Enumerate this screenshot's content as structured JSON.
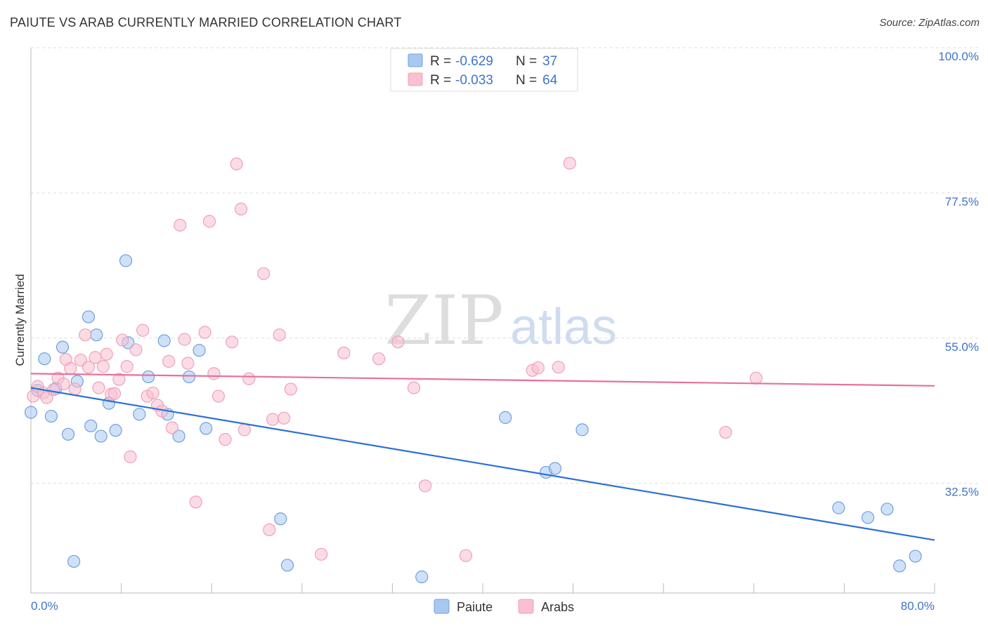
{
  "title": "PAIUTE VS ARAB CURRENTLY MARRIED CORRELATION CHART",
  "source": "Source: ZipAtlas.com",
  "watermark": {
    "zip": "ZIP",
    "atlas": "atlas"
  },
  "colors": {
    "paiute_fill": "#a8c8f0",
    "paiute_stroke": "#6fa0e0",
    "paiute_line": "#2b6fd6",
    "arab_fill": "#f8c0d0",
    "arab_stroke": "#f0a0b8",
    "arab_line": "#e8709a",
    "axis_text": "#3f74c8",
    "grid": "#dddddd"
  },
  "legend": {
    "rows": [
      {
        "r_label": "R =",
        "r_value": "-0.629",
        "n_label": "N =",
        "n_value": "37"
      },
      {
        "r_label": "R =",
        "r_value": "-0.033",
        "n_label": "N =",
        "n_value": "64"
      }
    ]
  },
  "chart_data": {
    "type": "scatter",
    "title": "PAIUTE VS ARAB CURRENTLY MARRIED CORRELATION CHART",
    "xlabel": "",
    "ylabel": "Currently Married",
    "xlim": [
      0,
      80
    ],
    "ylim": [
      15.5,
      100
    ],
    "x_tick_labels": [
      "0.0%",
      "80.0%"
    ],
    "y_ticks": [
      32.5,
      55.0,
      77.5,
      100.0
    ],
    "y_tick_labels": [
      "32.5%",
      "55.0%",
      "77.5%",
      "100.0%"
    ],
    "grid": true,
    "series": [
      {
        "name": "Paiute",
        "points": [
          [
            0.0,
            43.5
          ],
          [
            0.6,
            46.9
          ],
          [
            1.2,
            51.8
          ],
          [
            1.8,
            42.9
          ],
          [
            2.2,
            47.2
          ],
          [
            2.8,
            53.6
          ],
          [
            3.3,
            40.1
          ],
          [
            3.8,
            20.4
          ],
          [
            4.1,
            48.3
          ],
          [
            5.1,
            58.3
          ],
          [
            5.3,
            41.4
          ],
          [
            5.8,
            55.5
          ],
          [
            6.2,
            39.8
          ],
          [
            6.9,
            44.9
          ],
          [
            7.5,
            40.7
          ],
          [
            8.4,
            67.0
          ],
          [
            8.6,
            54.3
          ],
          [
            9.6,
            43.2
          ],
          [
            10.4,
            49.0
          ],
          [
            11.8,
            54.6
          ],
          [
            12.1,
            43.2
          ],
          [
            13.1,
            39.8
          ],
          [
            14.0,
            49.0
          ],
          [
            14.9,
            53.1
          ],
          [
            15.5,
            41.0
          ],
          [
            22.1,
            27.0
          ],
          [
            22.7,
            19.8
          ],
          [
            34.6,
            18.0
          ],
          [
            42.0,
            42.7
          ],
          [
            45.6,
            34.2
          ],
          [
            46.4,
            34.8
          ],
          [
            48.8,
            40.8
          ],
          [
            71.5,
            28.7
          ],
          [
            74.1,
            27.2
          ],
          [
            75.8,
            28.5
          ],
          [
            76.9,
            19.7
          ],
          [
            78.3,
            21.2
          ]
        ],
        "trend": {
          "x": [
            0,
            80
          ],
          "y": [
            47.3,
            23.7
          ]
        }
      },
      {
        "name": "Arabs",
        "points": [
          [
            0.2,
            46.0
          ],
          [
            0.6,
            47.5
          ],
          [
            1.1,
            46.5
          ],
          [
            1.4,
            45.8
          ],
          [
            2.0,
            47.0
          ],
          [
            2.4,
            48.8
          ],
          [
            2.9,
            47.9
          ],
          [
            3.1,
            51.7
          ],
          [
            3.5,
            50.3
          ],
          [
            3.9,
            47.1
          ],
          [
            4.4,
            51.6
          ],
          [
            4.8,
            55.5
          ],
          [
            5.1,
            50.5
          ],
          [
            5.7,
            52.0
          ],
          [
            6.0,
            47.3
          ],
          [
            6.4,
            50.6
          ],
          [
            6.7,
            52.5
          ],
          [
            7.1,
            46.3
          ],
          [
            7.4,
            46.4
          ],
          [
            7.8,
            48.6
          ],
          [
            8.1,
            54.7
          ],
          [
            8.5,
            50.6
          ],
          [
            8.8,
            36.6
          ],
          [
            9.3,
            53.2
          ],
          [
            9.9,
            56.2
          ],
          [
            10.3,
            46.0
          ],
          [
            10.8,
            46.5
          ],
          [
            11.2,
            44.6
          ],
          [
            11.6,
            43.7
          ],
          [
            12.2,
            51.4
          ],
          [
            12.5,
            41.1
          ],
          [
            13.2,
            72.5
          ],
          [
            13.6,
            54.8
          ],
          [
            13.9,
            51.1
          ],
          [
            14.6,
            29.6
          ],
          [
            15.4,
            55.9
          ],
          [
            15.8,
            73.1
          ],
          [
            16.2,
            49.5
          ],
          [
            16.6,
            46.0
          ],
          [
            17.2,
            39.3
          ],
          [
            17.8,
            54.4
          ],
          [
            18.2,
            82.0
          ],
          [
            18.6,
            75.0
          ],
          [
            18.9,
            40.8
          ],
          [
            19.3,
            48.7
          ],
          [
            20.6,
            65.0
          ],
          [
            21.1,
            25.3
          ],
          [
            21.4,
            42.4
          ],
          [
            22.0,
            55.5
          ],
          [
            22.4,
            42.6
          ],
          [
            23.0,
            47.1
          ],
          [
            25.7,
            21.5
          ],
          [
            27.7,
            52.7
          ],
          [
            30.8,
            51.8
          ],
          [
            32.5,
            54.4
          ],
          [
            33.9,
            47.3
          ],
          [
            34.9,
            32.1
          ],
          [
            38.5,
            21.3
          ],
          [
            44.4,
            50.0
          ],
          [
            44.9,
            50.4
          ],
          [
            46.7,
            50.5
          ],
          [
            47.7,
            82.1
          ],
          [
            61.5,
            40.4
          ],
          [
            64.2,
            48.8
          ]
        ],
        "trend": {
          "x": [
            0,
            80
          ],
          "y": [
            49.5,
            47.6
          ]
        }
      }
    ]
  }
}
